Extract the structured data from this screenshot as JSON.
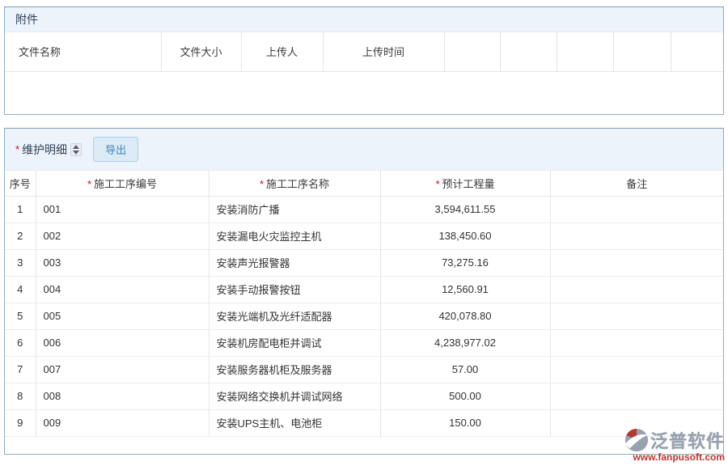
{
  "attachments": {
    "title": "附件",
    "columns": [
      "文件名称",
      "文件大小",
      "上传人",
      "上传时间",
      "",
      "",
      "",
      "",
      ""
    ]
  },
  "maintenance": {
    "required_marker": "*",
    "title": "维护明细",
    "export_label": "导出",
    "columns": [
      {
        "label": "序号",
        "required": false
      },
      {
        "label": "施工工序编号",
        "required": true
      },
      {
        "label": "施工工序名称",
        "required": true
      },
      {
        "label": "预计工程量",
        "required": true
      },
      {
        "label": "备注",
        "required": false
      }
    ],
    "rows": [
      {
        "seq": "1",
        "code": "001",
        "name": "安装消防广播",
        "quantity": "3,594,611.55",
        "remark": ""
      },
      {
        "seq": "2",
        "code": "002",
        "name": "安装漏电火灾监控主机",
        "quantity": "138,450.60",
        "remark": ""
      },
      {
        "seq": "3",
        "code": "003",
        "name": "安装声光报警器",
        "quantity": "73,275.16",
        "remark": ""
      },
      {
        "seq": "4",
        "code": "004",
        "name": "安装手动报警按钮",
        "quantity": "12,560.91",
        "remark": ""
      },
      {
        "seq": "5",
        "code": "005",
        "name": "安装光端机及光纤适配器",
        "quantity": "420,078.80",
        "remark": ""
      },
      {
        "seq": "6",
        "code": "006",
        "name": "安装机房配电柜并调试",
        "quantity": "4,238,977.02",
        "remark": ""
      },
      {
        "seq": "7",
        "code": "007",
        "name": "安装服务器机柜及服务器",
        "quantity": "57.00",
        "remark": ""
      },
      {
        "seq": "8",
        "code": "008",
        "name": "安装网络交换机并调试网络",
        "quantity": "500.00",
        "remark": ""
      },
      {
        "seq": "9",
        "code": "009",
        "name": "安装UPS主机、电池柜",
        "quantity": "150.00",
        "remark": ""
      }
    ]
  },
  "watermark": {
    "brand": "泛普软件",
    "url": "www.fanpusoft.com"
  },
  "colors": {
    "panel_border": "#8fafc0",
    "panel_header_bg": "#edf3fb",
    "required_red": "#e60000",
    "button_bg": "#dceaf5",
    "button_border": "#aed0e5",
    "button_text": "#3f88b5",
    "watermark_gray": "#99a1af",
    "watermark_red": "#c4332b"
  }
}
